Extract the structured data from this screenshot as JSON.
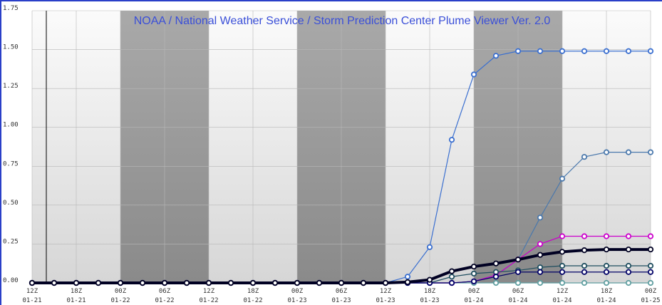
{
  "chart_data": {
    "type": "line",
    "title": "NOAA / National Weather Service / Storm Prediction Center Plume Viewer Ver. 2.0",
    "categories": [
      "12Z",
      null,
      "18Z",
      null,
      "00Z",
      null,
      "06Z",
      null,
      "12Z",
      null,
      "18Z",
      null,
      "00Z",
      null,
      "06Z",
      null,
      "12Z",
      null,
      "18Z",
      null,
      "00Z",
      null,
      "06Z",
      null,
      "12Z",
      null,
      "18Z",
      null,
      "00Z"
    ],
    "category_dates": [
      "01-21",
      null,
      "01-21",
      null,
      "01-22",
      null,
      "01-22",
      null,
      "01-22",
      null,
      "01-22",
      null,
      "01-23",
      null,
      "01-23",
      null,
      "01-23",
      null,
      "01-23",
      null,
      "01-24",
      null,
      "01-24",
      null,
      "01-24",
      null,
      "01-24",
      null,
      "01-25"
    ],
    "ylim": [
      0,
      1.75
    ],
    "yticks": [
      {
        "value": 0,
        "label": "0.00"
      },
      0.25,
      {
        "value": 0.5,
        "label": "0.50"
      },
      0.75,
      {
        "value": 1,
        "label": "1.00"
      },
      1.25,
      {
        "value": 1.5,
        "label": "1.50"
      },
      1.75
    ],
    "grid": true,
    "series": [
      {
        "color": "#5f9ea0",
        "width": 1.2,
        "values": [
          0,
          0,
          0,
          0,
          0,
          0,
          0,
          0,
          0,
          0,
          0,
          0,
          0,
          0,
          0,
          0,
          0,
          0,
          0,
          0,
          0,
          0,
          0,
          0,
          0,
          0,
          0,
          0,
          0
        ]
      },
      {
        "color": "#3a6fd0",
        "width": 1.2,
        "values": [
          0,
          0,
          0,
          0,
          0,
          0,
          0,
          0,
          0,
          0,
          0,
          0,
          0,
          0,
          0,
          0,
          0,
          0.04,
          0.23,
          0.92,
          1.34,
          1.46,
          1.49,
          1.49,
          1.49,
          1.49,
          1.49,
          1.49,
          1.49
        ]
      },
      {
        "color": "#4a78ac",
        "width": 1.2,
        "values": [
          0,
          0,
          0,
          0,
          0,
          0,
          0,
          0,
          0,
          0,
          0,
          0,
          0,
          0,
          0,
          0,
          0,
          0,
          0,
          0,
          0.01,
          0.05,
          0.15,
          0.42,
          0.67,
          0.81,
          0.84,
          0.84,
          0.84
        ]
      },
      {
        "color": "#cc00cc",
        "width": 1.2,
        "values": [
          0,
          0,
          0,
          0,
          0,
          0,
          0,
          0,
          0,
          0,
          0,
          0,
          0,
          0,
          0,
          0,
          0,
          0,
          0,
          0,
          0.01,
          0.05,
          0.15,
          0.25,
          0.3,
          0.3,
          0.3,
          0.3,
          0.3
        ]
      },
      {
        "color": "#1f4e5f",
        "width": 1.2,
        "values": [
          0,
          0,
          0,
          0,
          0,
          0,
          0,
          0,
          0,
          0,
          0,
          0,
          0,
          0,
          0,
          0,
          0,
          0,
          0,
          0.04,
          0.06,
          0.07,
          0.08,
          0.1,
          0.11,
          0.11,
          0.11,
          0.11,
          0.11
        ]
      },
      {
        "color": "#000066",
        "width": 1.2,
        "values": [
          0,
          0,
          0,
          0,
          0,
          0,
          0,
          0,
          0,
          0,
          0,
          0,
          0,
          0,
          0,
          0,
          0,
          0,
          0,
          0,
          0.01,
          0.04,
          0.07,
          0.07,
          0.07,
          0.07,
          0.07,
          0.07,
          0.07
        ]
      },
      {
        "color": "#000022",
        "width": 4,
        "values": [
          0,
          0,
          0,
          0,
          0,
          0,
          0,
          0,
          0,
          0,
          0,
          0,
          0,
          0,
          0,
          0,
          0,
          0.005,
          0.02,
          0.075,
          0.105,
          0.125,
          0.15,
          0.18,
          0.2,
          0.21,
          0.215,
          0.215,
          0.215
        ]
      }
    ]
  }
}
